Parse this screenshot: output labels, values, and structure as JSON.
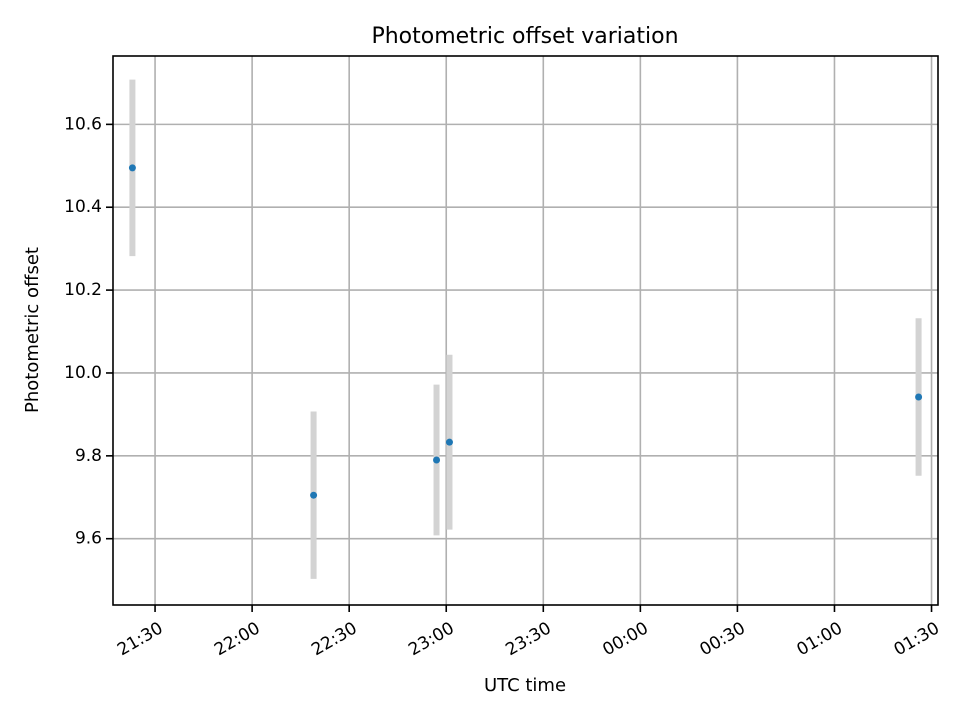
{
  "chart_data": {
    "type": "scatter",
    "title": "Photometric offset variation",
    "xlabel": "UTC time",
    "ylabel": "Photometric offset",
    "x_axis": {
      "kind": "time",
      "ticks": [
        "21:30",
        "22:00",
        "22:30",
        "23:00",
        "23:30",
        "00:00",
        "00:30",
        "01:00",
        "01:30"
      ],
      "range": [
        "21:17",
        "01:32"
      ]
    },
    "ylim": [
      9.44,
      10.765
    ],
    "yticks": [
      9.6,
      9.8,
      10.0,
      10.2,
      10.4,
      10.6
    ],
    "grid": true,
    "colors": {
      "point": "#1f77b4",
      "errorbar": "#d3d3d3"
    },
    "points": [
      {
        "time": "21:23",
        "y": 10.495,
        "err": 0.213
      },
      {
        "time": "22:19",
        "y": 9.705,
        "err": 0.202
      },
      {
        "time": "22:57",
        "y": 9.79,
        "err": 0.182
      },
      {
        "time": "23:01",
        "y": 9.833,
        "err": 0.211
      },
      {
        "time": "01:26",
        "y": 9.942,
        "err": 0.19
      }
    ]
  }
}
